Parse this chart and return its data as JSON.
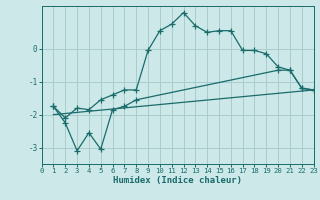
{
  "background_color": "#cce8e8",
  "grid_color": "#aacccc",
  "line_color": "#1a6b6b",
  "xlabel": "Humidex (Indice chaleur)",
  "xlim": [
    0,
    23
  ],
  "ylim": [
    -3.5,
    1.3
  ],
  "yticks": [
    -3,
    -2,
    -1,
    0
  ],
  "xticks": [
    0,
    1,
    2,
    3,
    4,
    5,
    6,
    7,
    8,
    9,
    10,
    11,
    12,
    13,
    14,
    15,
    16,
    17,
    18,
    19,
    20,
    21,
    22,
    23
  ],
  "line1_x": [
    1,
    2,
    3,
    4,
    5,
    6,
    7,
    8,
    9,
    10,
    11,
    12,
    13,
    14,
    15,
    16,
    17,
    18,
    19,
    20,
    21,
    22,
    23
  ],
  "line1_y": [
    -1.75,
    -2.1,
    -1.8,
    -1.85,
    -1.55,
    -1.4,
    -1.25,
    -1.25,
    -0.05,
    0.55,
    0.75,
    1.1,
    0.7,
    0.5,
    0.55,
    0.55,
    -0.05,
    -0.05,
    -0.15,
    -0.55,
    -0.65,
    -1.2,
    -1.25
  ],
  "line2_x": [
    1,
    2,
    3,
    4,
    5,
    6,
    7,
    8,
    20,
    21,
    22,
    23
  ],
  "line2_y": [
    -1.75,
    -2.25,
    -3.1,
    -2.55,
    -3.05,
    -1.85,
    -1.75,
    -1.55,
    -0.65,
    -0.65,
    -1.2,
    -1.25
  ],
  "line3_x": [
    1,
    23
  ],
  "line3_y": [
    -2.0,
    -1.25
  ]
}
